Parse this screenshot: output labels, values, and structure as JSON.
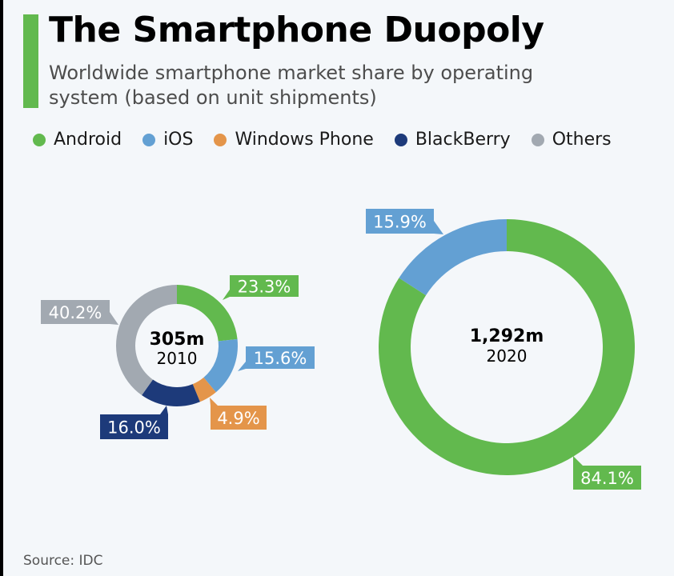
{
  "header": {
    "title": "The Smartphone Duopoly",
    "subtitle": "Worldwide smartphone market share by operating system (based on unit shipments)"
  },
  "colors": {
    "accent": "#62b94e",
    "Android": "#62b94e",
    "iOS": "#63a0d3",
    "Windows Phone": "#e4954a",
    "BlackBerry": "#1d3a7a",
    "Others": "#a2a9b1"
  },
  "legend": [
    {
      "label": "Android",
      "color": "#62b94e"
    },
    {
      "label": "iOS",
      "color": "#63a0d3"
    },
    {
      "label": "Windows Phone",
      "color": "#e4954a"
    },
    {
      "label": "BlackBerry",
      "color": "#1d3a7a"
    },
    {
      "label": "Others",
      "color": "#a2a9b1"
    }
  ],
  "chart_data": [
    {
      "type": "pie",
      "variant": "donut",
      "title": "2010",
      "center_label": "305m",
      "center_sublabel": "2010",
      "total_units": "305m",
      "start": "top",
      "direction": "clockwise",
      "categories": [
        "Android",
        "iOS",
        "Windows Phone",
        "BlackBerry",
        "Others"
      ],
      "values": [
        23.3,
        15.6,
        4.9,
        16.0,
        40.2
      ],
      "data_labels": [
        "23.3%",
        "15.6%",
        "4.9%",
        "16.0%",
        "40.2%"
      ],
      "unit": "%"
    },
    {
      "type": "pie",
      "variant": "donut",
      "title": "2020",
      "center_label": "1,292m",
      "center_sublabel": "2020",
      "total_units": "1,292m",
      "start": "top",
      "direction": "clockwise",
      "categories": [
        "Android",
        "iOS"
      ],
      "values": [
        84.1,
        15.9
      ],
      "data_labels": [
        "84.1%",
        "15.9%"
      ],
      "unit": "%"
    }
  ],
  "footer": {
    "source": "Source: IDC"
  }
}
